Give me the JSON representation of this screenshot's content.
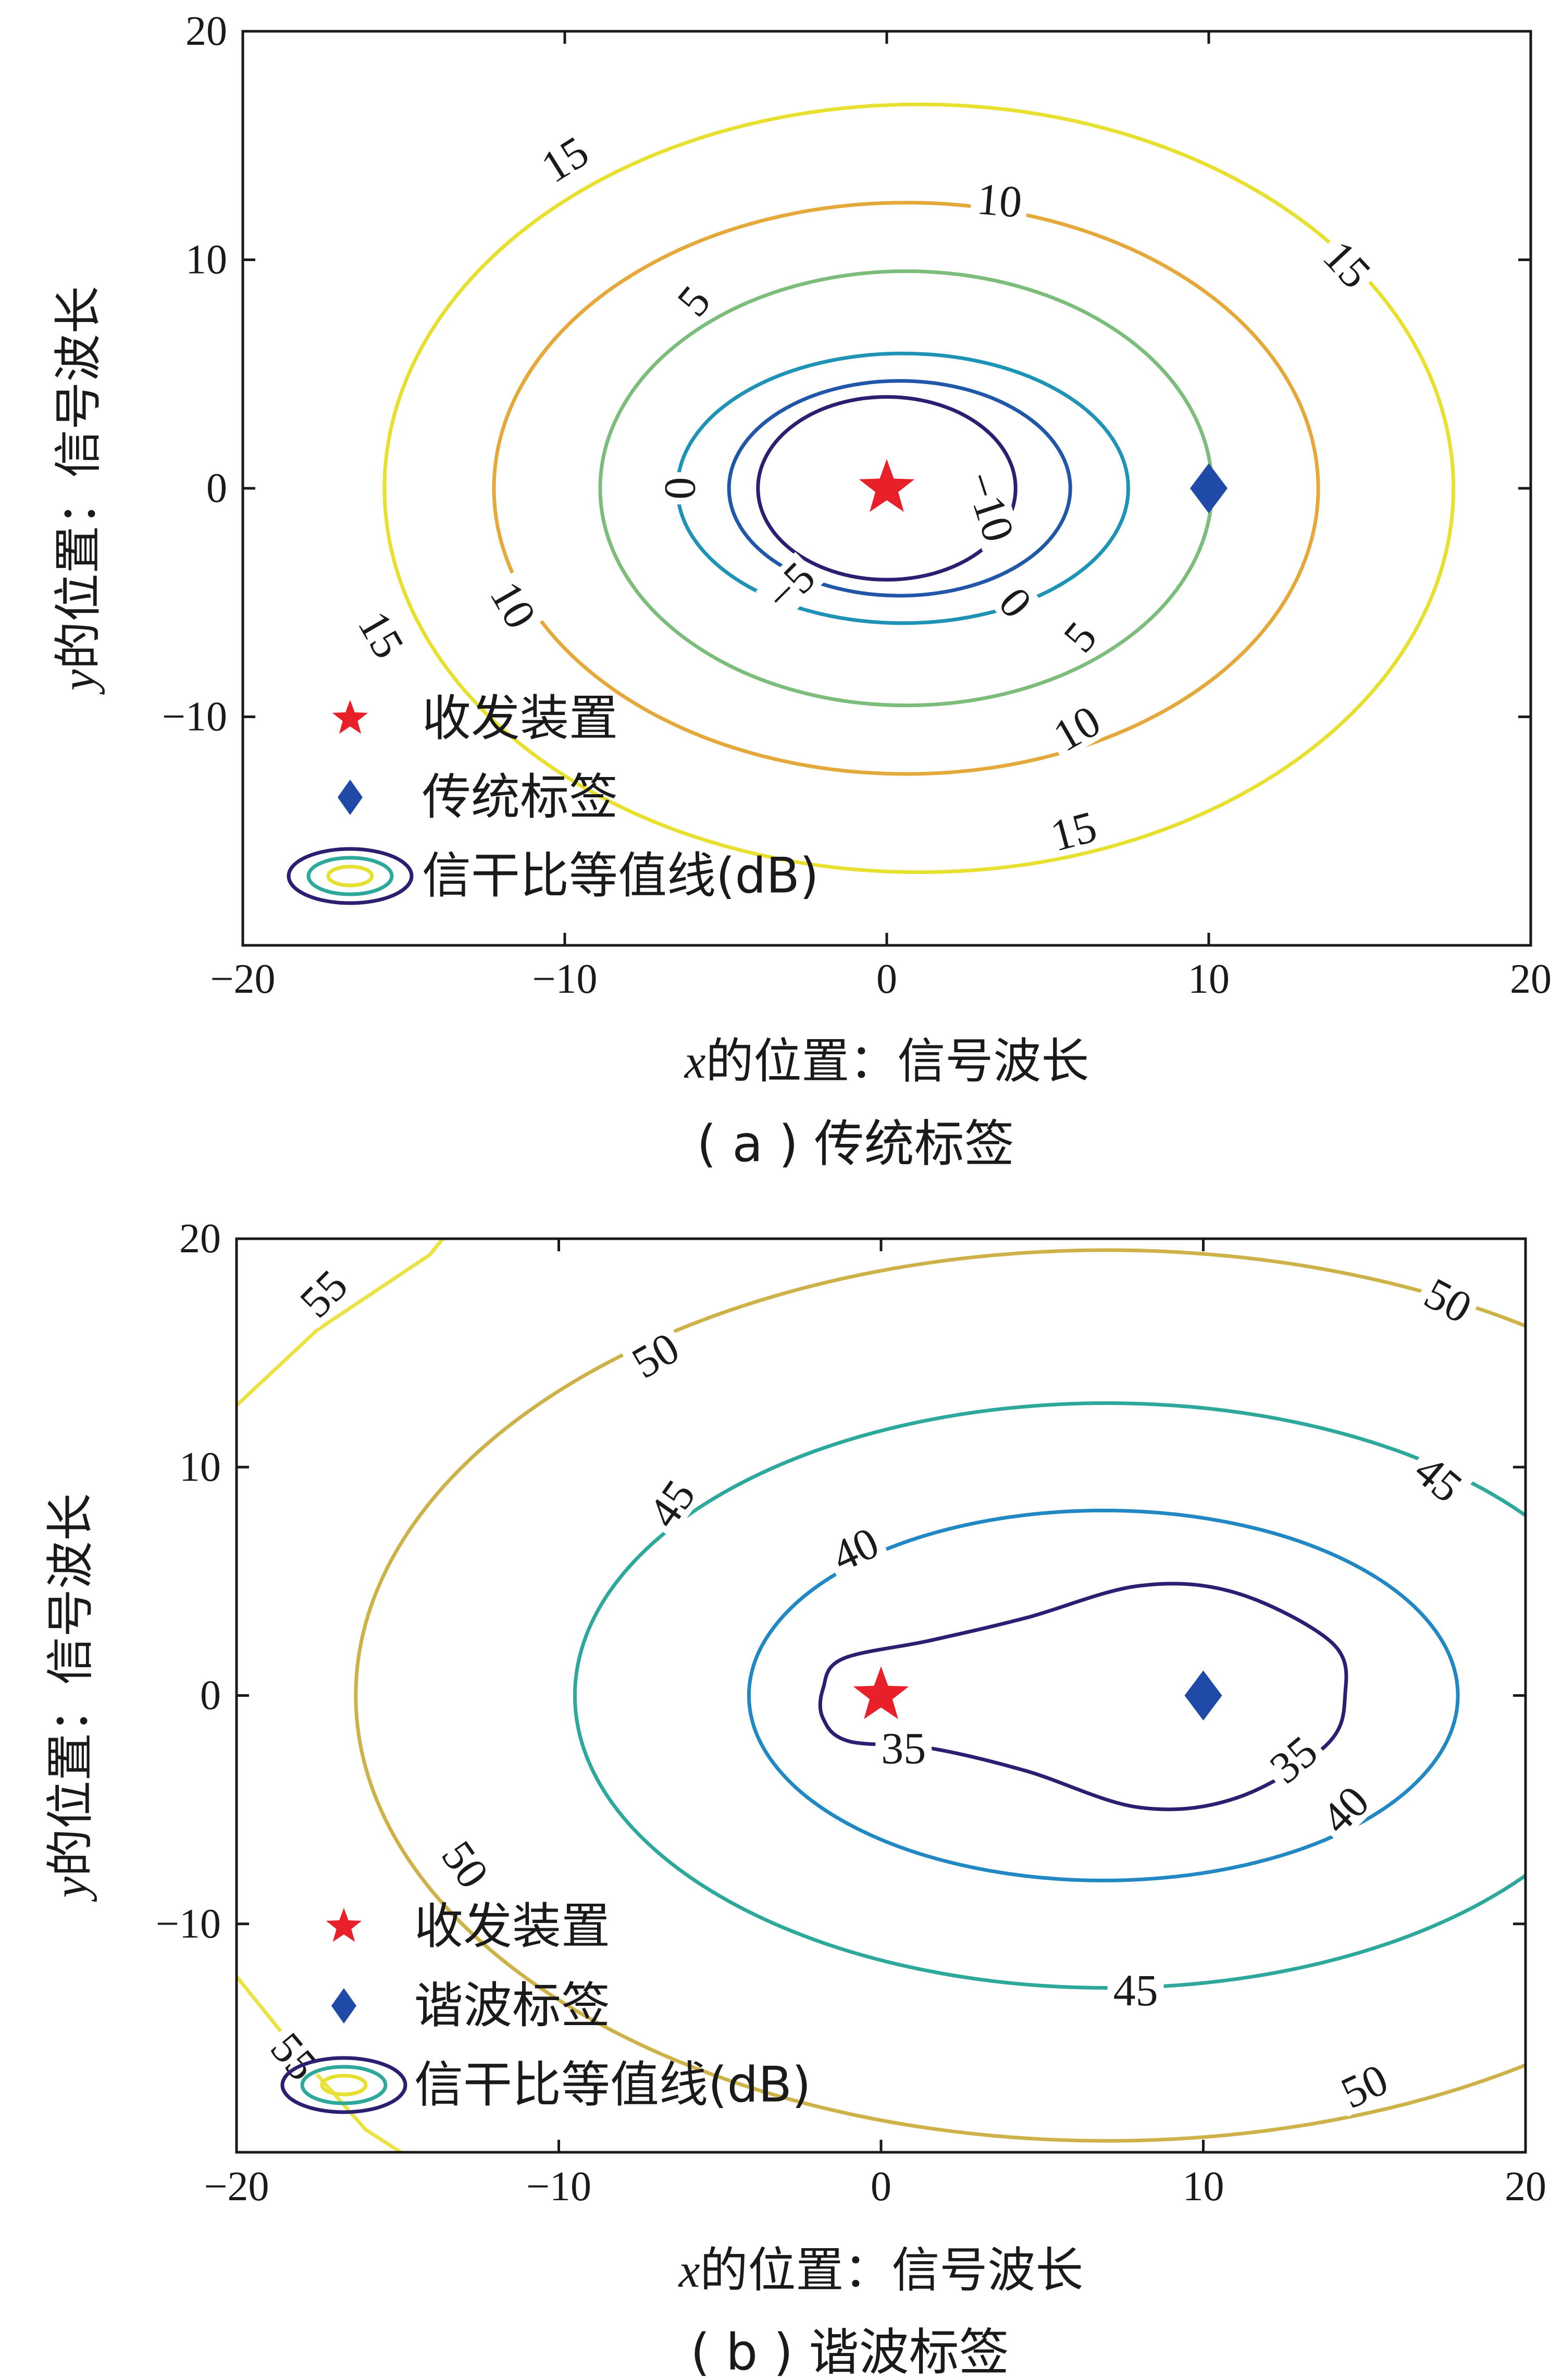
{
  "chart_data": [
    {
      "type": "contour",
      "caption": "( a ) 传统标签",
      "xlabel_var": "x",
      "xlabel_rest": "的位置：信号波长",
      "ylabel_var": "y",
      "ylabel_rest": "的位置：信号波长",
      "xlim": [
        -20,
        20
      ],
      "ylim": [
        -20,
        20
      ],
      "xticks": [
        -20,
        -10,
        0,
        10,
        20
      ],
      "yticks": [
        -10,
        0,
        10,
        20
      ],
      "xtick_labels": [
        "−20",
        "−10",
        "0",
        "10",
        "20"
      ],
      "ytick_labels": [
        "−10",
        "0",
        "10",
        "20"
      ],
      "legend_location": "lower-left",
      "legend": [
        {
          "name": "收发装置",
          "marker": "star",
          "color": "#e8202a"
        },
        {
          "name": "传统标签",
          "marker": "diamond",
          "color": "#1f4aa8"
        },
        {
          "name": "信干比等值线(dB)",
          "marker": "contour-ellipse",
          "color": "#2b1f6e"
        }
      ],
      "points": [
        {
          "name": "收发装置",
          "x": 0,
          "y": 0,
          "marker": "star",
          "color": "#e8202a"
        },
        {
          "name": "传统标签",
          "x": 10,
          "y": 0,
          "marker": "diamond",
          "color": "#1f4aa8"
        }
      ],
      "contours": [
        {
          "level": "−10",
          "color": "#2d1e72",
          "cx": 0,
          "cy": 0,
          "rx": 4,
          "ry": 4,
          "labels": [
            {
              "text": "−10",
              "x": 3.2,
              "y": -0.8,
              "angle": 72
            }
          ]
        },
        {
          "level": "−5",
          "color": "#2157a8",
          "cx": 0.4,
          "cy": 0,
          "rx": 5.3,
          "ry": 4.7,
          "labels": [
            {
              "text": "−5",
              "x": -3,
              "y": -4.3,
              "angle": -45
            }
          ]
        },
        {
          "level": "0",
          "color": "#1f93b6",
          "cx": 0.5,
          "cy": 0,
          "rx": 7,
          "ry": 5.9,
          "labels": [
            {
              "text": "0",
              "x": -6.4,
              "y": 0,
              "angle": 90
            },
            {
              "text": "0",
              "x": 4,
              "y": -5,
              "angle": 50
            }
          ]
        },
        {
          "level": "5",
          "color": "#7dbd7b",
          "cx": 0.6,
          "cy": 0,
          "rx": 9.5,
          "ry": 9.5,
          "labels": [
            {
              "text": "5",
              "x": -6,
              "y": 8.2,
              "angle": -50
            },
            {
              "text": "5",
              "x": 6,
              "y": -6.5,
              "angle": -50
            }
          ]
        },
        {
          "level": "10",
          "color": "#e5a83a",
          "cx": 0.6,
          "cy": 0,
          "rx": 12.8,
          "ry": 12.5,
          "labels": [
            {
              "text": "10",
              "x": 3.5,
              "y": 12.6,
              "angle": 5
            },
            {
              "text": "10",
              "x": -11.6,
              "y": -5.1,
              "angle": 60
            },
            {
              "text": "10",
              "x": 5.9,
              "y": -10.5,
              "angle": -30
            }
          ]
        },
        {
          "level": "15",
          "color": "#e8e030",
          "cx": 1,
          "cy": 0,
          "rx": 16.6,
          "ry": 16.8,
          "labels": [
            {
              "text": "15",
              "x": -10,
              "y": 14.4,
              "angle": -32
            },
            {
              "text": "15",
              "x": 14.3,
              "y": 9.8,
              "angle": 47
            },
            {
              "text": "15",
              "x": -15.7,
              "y": -6.4,
              "angle": 60
            },
            {
              "text": "15",
              "x": 5.8,
              "y": -15,
              "angle": -15
            }
          ]
        }
      ]
    },
    {
      "type": "contour",
      "caption": "( b ) 谐波标签",
      "xlabel_var": "x",
      "xlabel_rest": "的位置：信号波长",
      "ylabel_var": "y",
      "ylabel_rest": "的位置：信号波长",
      "xlim": [
        -20,
        20
      ],
      "ylim": [
        -20,
        20
      ],
      "xticks": [
        -20,
        -10,
        0,
        10,
        20
      ],
      "yticks": [
        -10,
        0,
        10,
        20
      ],
      "xtick_labels": [
        "−20",
        "−10",
        "0",
        "10",
        "20"
      ],
      "ytick_labels": [
        "−10",
        "0",
        "10",
        "20"
      ],
      "legend_location": "lower-left",
      "legend": [
        {
          "name": "收发装置",
          "marker": "star",
          "color": "#e8202a"
        },
        {
          "name": "谐波标签",
          "marker": "diamond",
          "color": "#1f4aa8"
        },
        {
          "name": "信干比等值线(dB)",
          "marker": "contour-ellipse",
          "color": "#2b1f6e"
        }
      ],
      "points": [
        {
          "name": "收发装置",
          "x": 0,
          "y": 0,
          "marker": "star",
          "color": "#e8202a"
        },
        {
          "name": "谐波标签",
          "x": 10,
          "y": 0,
          "marker": "diamond",
          "color": "#1f4aa8"
        }
      ],
      "contours": [
        {
          "level": "35",
          "color": "#2d1e72",
          "shape": "peanut",
          "path": [
            [
              -1.8,
              0.3
            ],
            [
              -1.2,
              1.6
            ],
            [
              1.5,
              2.4
            ],
            [
              4.5,
              3.4
            ],
            [
              8,
              4.8
            ],
            [
              11,
              4.5
            ],
            [
              14,
              2.3
            ],
            [
              14.4,
              0
            ],
            [
              13.8,
              -2.2
            ],
            [
              11,
              -4.5
            ],
            [
              8,
              -4.9
            ],
            [
              4.5,
              -3.3
            ],
            [
              1.5,
              -2.3
            ],
            [
              -1,
              -2
            ],
            [
              -1.8,
              -1
            ]
          ],
          "labels": [
            {
              "text": "35",
              "x": 0.7,
              "y": -2.3,
              "angle": 0
            },
            {
              "text": "35",
              "x": 12.8,
              "y": -2.8,
              "angle": -40
            }
          ]
        },
        {
          "level": "40",
          "color": "#2188c3",
          "cx": 6.9,
          "cy": 0,
          "rx": 11,
          "ry": 8.1,
          "labels": [
            {
              "text": "40",
              "x": -0.8,
              "y": 6.4,
              "angle": -25
            },
            {
              "text": "40",
              "x": 14.4,
              "y": -5,
              "angle": -45
            }
          ]
        },
        {
          "level": "45",
          "color": "#2ea89a",
          "cx": 7,
          "cy": 0,
          "rx": 16.5,
          "ry": 12.8,
          "labels": [
            {
              "text": "45",
              "x": -6.5,
              "y": 8.4,
              "angle": -55
            },
            {
              "text": "45",
              "x": 17.3,
              "y": 9.5,
              "angle": 40
            },
            {
              "text": "45",
              "x": 7.9,
              "y": -12.9,
              "angle": 0
            }
          ]
        },
        {
          "level": "50",
          "color": "#cdb24a",
          "cx": 7,
          "cy": 0,
          "rx": 23.3,
          "ry": 19.5,
          "labels": [
            {
              "text": "50",
              "x": -7,
              "y": 14.9,
              "angle": -30
            },
            {
              "text": "50",
              "x": 17.6,
              "y": 17.3,
              "angle": 28
            },
            {
              "text": "50",
              "x": -12.9,
              "y": -7.4,
              "angle": 55
            },
            {
              "text": "50",
              "x": 15,
              "y": -17.1,
              "angle": -25
            }
          ]
        },
        {
          "level": "55",
          "color": "#eae343",
          "shape": "corner-arcs",
          "paths": [
            [
              [
                -20,
                12.7
              ],
              [
                -17.5,
                16
              ],
              [
                -14,
                19.3
              ],
              [
                -13.6,
                20
              ]
            ],
            [
              [
                -20,
                -12.3
              ],
              [
                -18,
                -15.8
              ],
              [
                -16,
                -19
              ],
              [
                -14.9,
                -20
              ]
            ]
          ],
          "labels": [
            {
              "text": "55",
              "x": -17.3,
              "y": 17.6,
              "angle": -45
            },
            {
              "text": "55",
              "x": -18.2,
              "y": -15.8,
              "angle": 50
            }
          ]
        }
      ]
    }
  ]
}
